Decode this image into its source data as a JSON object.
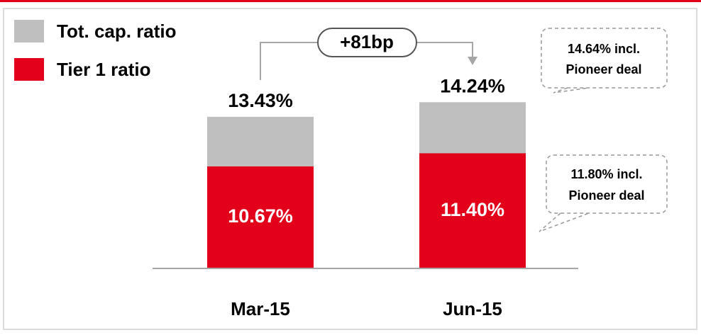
{
  "chart_data": {
    "type": "bar",
    "categories": [
      "Mar-15",
      "Jun-15"
    ],
    "series": [
      {
        "name": "Tot. cap. ratio",
        "color": "#bfbfbf",
        "values": [
          13.43,
          14.24
        ],
        "value_labels": [
          "13.43%",
          "14.24%"
        ]
      },
      {
        "name": "Tier 1 ratio",
        "color": "#e2001a",
        "values": [
          10.67,
          11.4
        ],
        "value_labels": [
          "10.67%",
          "11.40%"
        ]
      }
    ],
    "overlap": true,
    "ylim": [
      5,
      15
    ],
    "legend": "top-left",
    "annotations": {
      "change": "+81bp",
      "callouts": [
        {
          "lines": [
            "14.64% incl.",
            "Pioneer deal"
          ]
        },
        {
          "lines": [
            "11.80% incl.",
            "Pioneer deal"
          ]
        }
      ]
    }
  }
}
